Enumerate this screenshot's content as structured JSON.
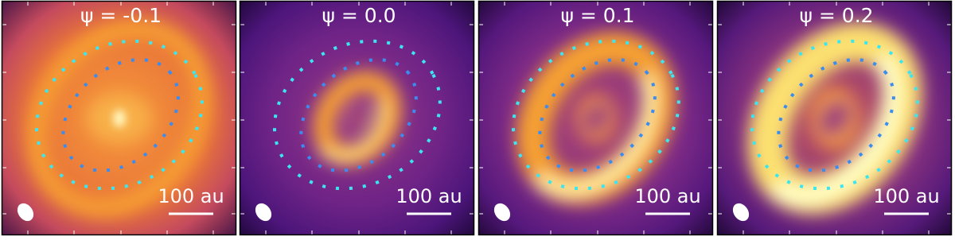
{
  "panels": [
    {
      "title": "ψ = -0.1",
      "scale_label": "100 au"
    },
    {
      "title": "ψ = 0.0",
      "scale_label": "100 au"
    },
    {
      "title": "ψ = 0.1",
      "scale_label": "100 au"
    },
    {
      "title": "ψ = 0.2",
      "scale_label": "100 au"
    }
  ]
}
